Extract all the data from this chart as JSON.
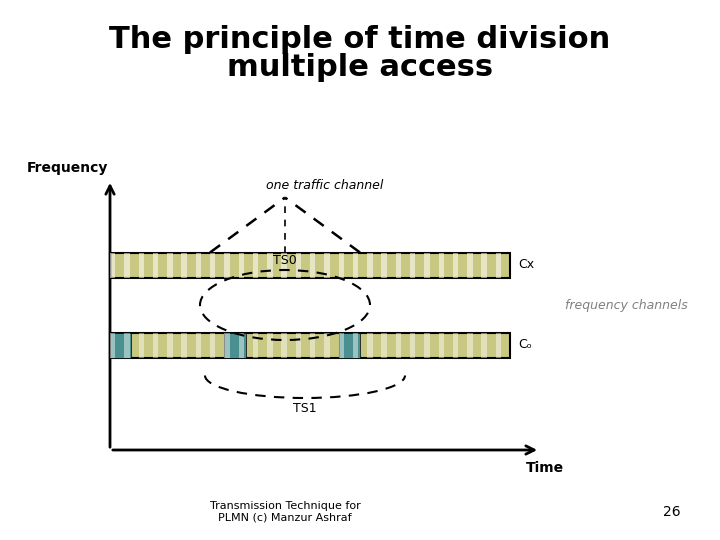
{
  "title_line1": "The principle of time division",
  "title_line2": "multiple access",
  "title_fontsize": 22,
  "bg_color": "#ffffff",
  "freq_label": "Frequency",
  "time_label": "Time",
  "cx_label": "Cx",
  "co_label": "Cₒ",
  "freq_channels_label": "frequency channels",
  "one_traffic_label": "one traffic channel",
  "ts0_label": "TS0",
  "ts1_label": "TS1",
  "footer_text": "Transmission Technique for\nPLMN (c) Manzur Ashraf",
  "page_number": "26",
  "bar_color_main": "#c8c882",
  "bar_color_teal": "#4a9090",
  "bar_outline": "#000000",
  "stripe_color": "#ffffff"
}
